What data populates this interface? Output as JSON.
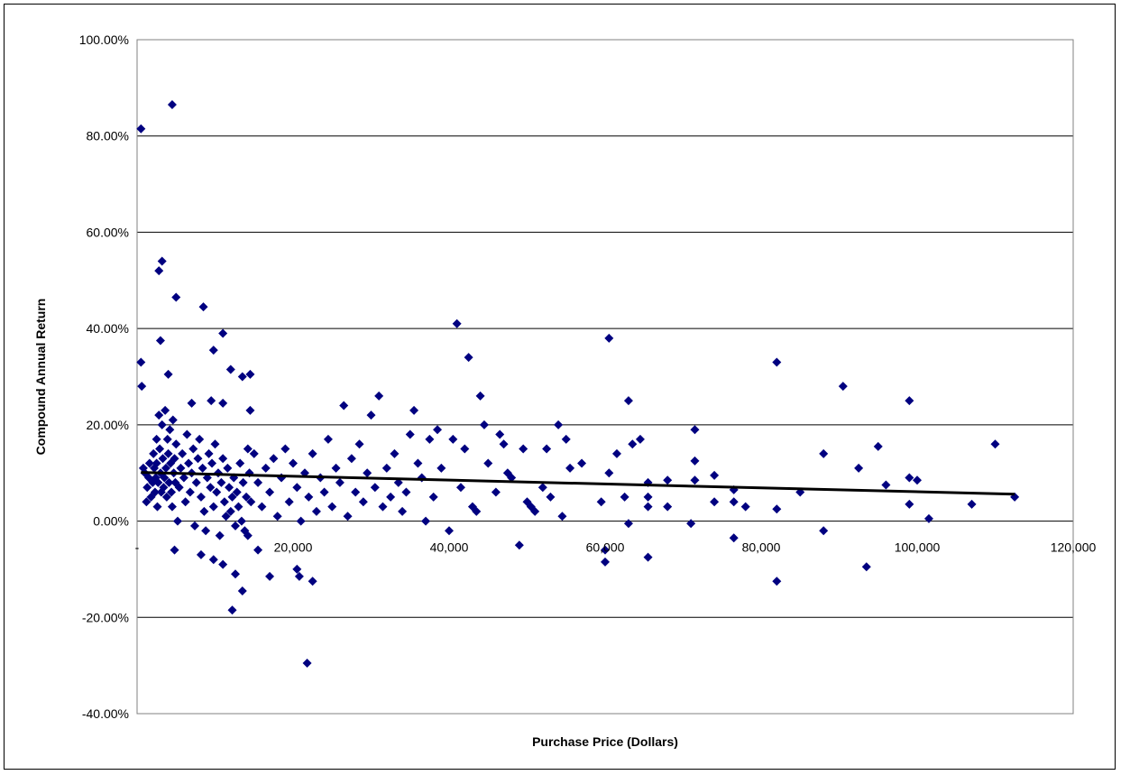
{
  "chart_data": {
    "type": "scatter",
    "title": "",
    "xlabel": "Purchase Price (Dollars)",
    "ylabel": "Compound Annual Return",
    "xlim": [
      0,
      120000
    ],
    "ylim": [
      -40,
      100
    ],
    "x_ticks": [
      0,
      20000,
      40000,
      60000,
      80000,
      100000,
      120000
    ],
    "x_tick_labels": [
      "-",
      "20,000",
      "40,000",
      "60,000",
      "80,000",
      "100,000",
      "120,000"
    ],
    "y_ticks": [
      -40,
      -20,
      0,
      20,
      40,
      60,
      80,
      100
    ],
    "y_tick_labels": [
      "-40.00%",
      "-20.00%",
      "0.00%",
      "20.00%",
      "40.00%",
      "60.00%",
      "80.00%",
      "100.00%"
    ],
    "grid": "horizontal",
    "legend": "none",
    "colors": {
      "marker": "#000080",
      "trendline": "#000000",
      "grid": "#000000"
    },
    "trendline": {
      "x": [
        500,
        112500
      ],
      "y": [
        10.1,
        5.6
      ]
    },
    "series": [
      {
        "values": [
          [
            500,
            81.5
          ],
          [
            4500,
            86.5
          ],
          [
            500,
            33
          ],
          [
            600,
            28
          ],
          [
            3200,
            54
          ],
          [
            2800,
            52
          ],
          [
            5000,
            46.5
          ],
          [
            8500,
            44.5
          ],
          [
            9800,
            35.5
          ],
          [
            11000,
            39
          ],
          [
            3000,
            37.5
          ],
          [
            12000,
            31.5
          ],
          [
            13500,
            30
          ],
          [
            14500,
            30.5
          ],
          [
            4000,
            30.5
          ],
          [
            7000,
            24.5
          ],
          [
            9500,
            25
          ],
          [
            11000,
            24.5
          ],
          [
            14500,
            23
          ],
          [
            800,
            11
          ],
          [
            1000,
            10
          ],
          [
            1200,
            4
          ],
          [
            1300,
            7
          ],
          [
            1500,
            9
          ],
          [
            1600,
            12
          ],
          [
            1800,
            5
          ],
          [
            2000,
            8
          ],
          [
            2100,
            14
          ],
          [
            2200,
            11
          ],
          [
            2300,
            6
          ],
          [
            2400,
            9
          ],
          [
            2500,
            17
          ],
          [
            2500,
            12
          ],
          [
            2600,
            3
          ],
          [
            2700,
            8
          ],
          [
            2800,
            22
          ],
          [
            2900,
            15
          ],
          [
            3000,
            10
          ],
          [
            3100,
            6
          ],
          [
            3200,
            20
          ],
          [
            3300,
            13
          ],
          [
            3400,
            7
          ],
          [
            3500,
            9
          ],
          [
            3600,
            23
          ],
          [
            3700,
            11
          ],
          [
            3800,
            5
          ],
          [
            3900,
            17
          ],
          [
            4000,
            14
          ],
          [
            4100,
            8
          ],
          [
            4200,
            19
          ],
          [
            4300,
            12
          ],
          [
            4400,
            6
          ],
          [
            4500,
            3
          ],
          [
            4600,
            21
          ],
          [
            4700,
            10
          ],
          [
            4800,
            13
          ],
          [
            4900,
            8
          ],
          [
            5000,
            16
          ],
          [
            5200,
            0
          ],
          [
            5400,
            7
          ],
          [
            5600,
            11
          ],
          [
            5800,
            14
          ],
          [
            6000,
            9
          ],
          [
            6200,
            4
          ],
          [
            6400,
            18
          ],
          [
            6600,
            12
          ],
          [
            6800,
            6
          ],
          [
            7000,
            10
          ],
          [
            7200,
            15
          ],
          [
            7400,
            -1
          ],
          [
            7600,
            8
          ],
          [
            7800,
            13
          ],
          [
            8000,
            17
          ],
          [
            8200,
            5
          ],
          [
            8400,
            11
          ],
          [
            8600,
            2
          ],
          [
            8800,
            -2
          ],
          [
            9000,
            9
          ],
          [
            9200,
            14
          ],
          [
            9400,
            7
          ],
          [
            9600,
            12
          ],
          [
            9800,
            3
          ],
          [
            10000,
            16
          ],
          [
            10200,
            6
          ],
          [
            10400,
            10
          ],
          [
            10600,
            -3
          ],
          [
            10800,
            8
          ],
          [
            11000,
            13
          ],
          [
            11200,
            4
          ],
          [
            11400,
            1
          ],
          [
            11600,
            11
          ],
          [
            11800,
            7
          ],
          [
            12000,
            2
          ],
          [
            12200,
            5
          ],
          [
            12400,
            9
          ],
          [
            12600,
            -1
          ],
          [
            12800,
            6
          ],
          [
            13000,
            3
          ],
          [
            13200,
            12
          ],
          [
            13400,
            0
          ],
          [
            13600,
            8
          ],
          [
            13800,
            -2
          ],
          [
            14000,
            5
          ],
          [
            14200,
            15
          ],
          [
            14400,
            10
          ],
          [
            14600,
            4
          ],
          [
            4800,
            -6
          ],
          [
            8200,
            -7
          ],
          [
            9800,
            -8
          ],
          [
            11000,
            -9
          ],
          [
            12600,
            -11
          ],
          [
            12200,
            -18.5
          ],
          [
            13500,
            -14.5
          ],
          [
            14200,
            -3
          ],
          [
            15500,
            -6
          ],
          [
            17000,
            -11.5
          ],
          [
            20500,
            -10
          ],
          [
            20800,
            -11.5
          ],
          [
            22500,
            -12.5
          ],
          [
            21800,
            -29.5
          ],
          [
            15000,
            14
          ],
          [
            15500,
            8
          ],
          [
            16000,
            3
          ],
          [
            16500,
            11
          ],
          [
            17000,
            6
          ],
          [
            17500,
            13
          ],
          [
            18000,
            1
          ],
          [
            18500,
            9
          ],
          [
            19000,
            15
          ],
          [
            19500,
            4
          ],
          [
            20000,
            12
          ],
          [
            20500,
            7
          ],
          [
            21000,
            0
          ],
          [
            21500,
            10
          ],
          [
            22000,
            5
          ],
          [
            22500,
            14
          ],
          [
            23000,
            2
          ],
          [
            23500,
            9
          ],
          [
            24000,
            6
          ],
          [
            24500,
            17
          ],
          [
            25000,
            3
          ],
          [
            25500,
            11
          ],
          [
            26000,
            8
          ],
          [
            26500,
            24
          ],
          [
            27000,
            1
          ],
          [
            27500,
            13
          ],
          [
            28000,
            6
          ],
          [
            28500,
            16
          ],
          [
            29000,
            4
          ],
          [
            29500,
            10
          ],
          [
            30000,
            22
          ],
          [
            30500,
            7
          ],
          [
            31000,
            26
          ],
          [
            31500,
            3
          ],
          [
            32000,
            11
          ],
          [
            32500,
            5
          ],
          [
            33000,
            14
          ],
          [
            33500,
            8
          ],
          [
            34000,
            2
          ],
          [
            34500,
            6
          ],
          [
            35000,
            18
          ],
          [
            35500,
            23
          ],
          [
            36000,
            12
          ],
          [
            36500,
            9
          ],
          [
            37000,
            0
          ],
          [
            37500,
            17
          ],
          [
            38000,
            5
          ],
          [
            38500,
            19
          ],
          [
            39000,
            11
          ],
          [
            40000,
            -2
          ],
          [
            40500,
            17
          ],
          [
            41000,
            41
          ],
          [
            41500,
            7
          ],
          [
            42000,
            15
          ],
          [
            42500,
            34
          ],
          [
            43000,
            3
          ],
          [
            43500,
            2
          ],
          [
            44000,
            26
          ],
          [
            44500,
            20
          ],
          [
            45000,
            12
          ],
          [
            46000,
            6
          ],
          [
            46500,
            18
          ],
          [
            47000,
            16
          ],
          [
            47500,
            10
          ],
          [
            48000,
            9
          ],
          [
            49000,
            -5
          ],
          [
            49500,
            15
          ],
          [
            50000,
            4
          ],
          [
            50500,
            3
          ],
          [
            51000,
            2
          ],
          [
            52000,
            7
          ],
          [
            52500,
            15
          ],
          [
            53000,
            5
          ],
          [
            54000,
            20
          ],
          [
            54500,
            1
          ],
          [
            55000,
            17
          ],
          [
            55500,
            11
          ],
          [
            57000,
            12
          ],
          [
            59500,
            4
          ],
          [
            60500,
            38
          ],
          [
            60500,
            10
          ],
          [
            60000,
            -6
          ],
          [
            60000,
            -8.5
          ],
          [
            61500,
            14
          ],
          [
            62500,
            5
          ],
          [
            63000,
            25
          ],
          [
            63000,
            -0.5
          ],
          [
            63500,
            16
          ],
          [
            64500,
            17
          ],
          [
            65500,
            8
          ],
          [
            65500,
            5
          ],
          [
            65500,
            3
          ],
          [
            65500,
            -7.5
          ],
          [
            68000,
            3
          ],
          [
            68000,
            8.5
          ],
          [
            71000,
            -0.5
          ],
          [
            71500,
            12.5
          ],
          [
            71500,
            19
          ],
          [
            71500,
            8.5
          ],
          [
            74000,
            9.5
          ],
          [
            74000,
            4
          ],
          [
            76500,
            6.5
          ],
          [
            76500,
            4
          ],
          [
            76500,
            -3.5
          ],
          [
            78000,
            3
          ],
          [
            82000,
            2.5
          ],
          [
            82000,
            33
          ],
          [
            82000,
            -12.5
          ],
          [
            85000,
            6
          ],
          [
            88000,
            14
          ],
          [
            88000,
            -2
          ],
          [
            90500,
            28
          ],
          [
            92500,
            11
          ],
          [
            93500,
            -9.5
          ],
          [
            95000,
            15.5
          ],
          [
            96000,
            7.5
          ],
          [
            99000,
            25
          ],
          [
            99000,
            9
          ],
          [
            99000,
            3.5
          ],
          [
            100000,
            8.5
          ],
          [
            101500,
            0.5
          ],
          [
            107000,
            3.5
          ],
          [
            110000,
            16
          ],
          [
            112500,
            5
          ]
        ]
      }
    ]
  }
}
